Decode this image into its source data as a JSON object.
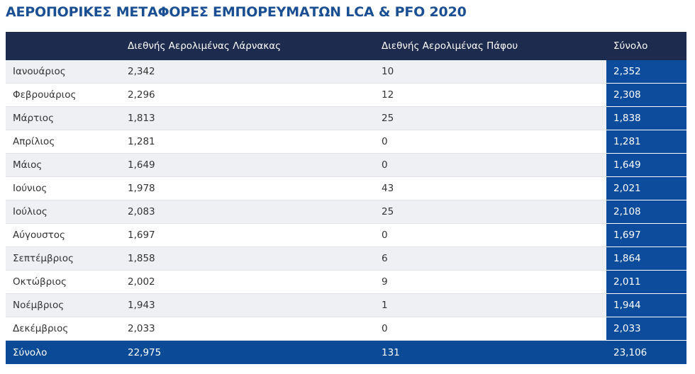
{
  "title": "ΑΕΡΟΠΟΡΙΚΕΣ ΜΕΤΑΦΟΡΕΣ ΕΜΠΟΡΕΥΜΑΤΩΝ LCA & PFO 2020",
  "table": {
    "header": [
      "",
      "Διεθνής Αερολιμένας Λάρνακας",
      "Διεθνής Αερολιμένας Πάφου",
      "Σύνολο"
    ],
    "rows": [
      [
        "Ιανουάριος",
        "2,342",
        "10",
        "2,352"
      ],
      [
        "Φεβρουάριος",
        "2,296",
        "12",
        "2,308"
      ],
      [
        "Μάρτιος",
        "1,813",
        "25",
        "1,838"
      ],
      [
        "Απρίλιος",
        "1,281",
        "0",
        "1,281"
      ],
      [
        "Μάιος",
        "1,649",
        "0",
        "1,649"
      ],
      [
        "Ιούνιος",
        "1,978",
        "43",
        "2,021"
      ],
      [
        "Ιούλιος",
        "2,083",
        "25",
        "2,108"
      ],
      [
        "Αύγουστος",
        "1,697",
        "0",
        "1,697"
      ],
      [
        "Σεπτέμβριος",
        "1,858",
        "6",
        "1,864"
      ],
      [
        "Οκτώβριος",
        "2,002",
        "9",
        "2,011"
      ],
      [
        "Νοέμβριος",
        "1,943",
        "1",
        "1,944"
      ],
      [
        "Δεκέμβριος",
        "2,033",
        "0",
        "2,033"
      ]
    ],
    "footer": [
      "Σύνολο",
      "22,975",
      "131",
      "23,106"
    ]
  }
}
